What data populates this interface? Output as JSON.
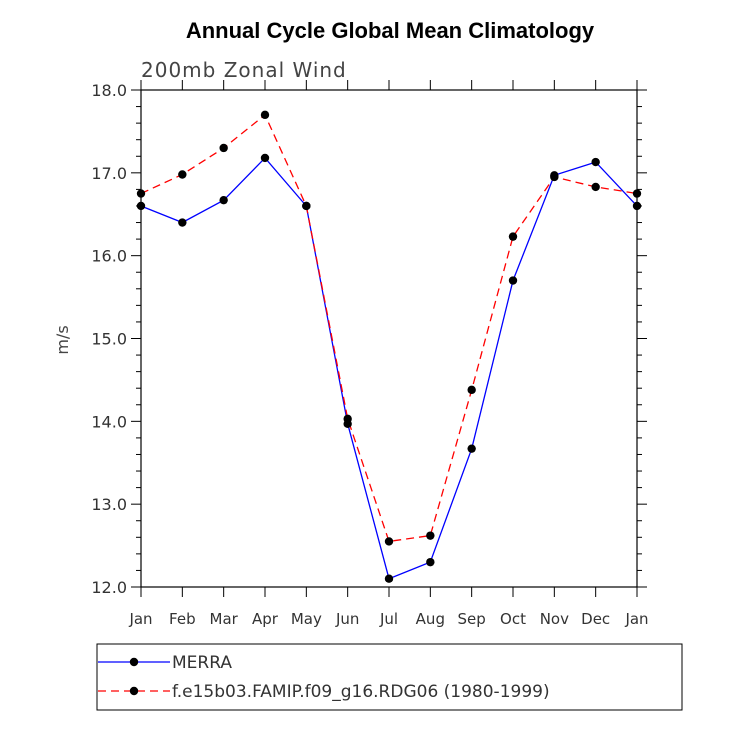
{
  "chart_data": {
    "type": "line",
    "title": "Annual Cycle Global Mean Climatology",
    "subtitle": "200mb Zonal Wind",
    "xlabel": "",
    "ylabel": "m/s",
    "categories": [
      "Jan",
      "Feb",
      "Mar",
      "Apr",
      "May",
      "Jun",
      "Jul",
      "Aug",
      "Sep",
      "Oct",
      "Nov",
      "Dec",
      "Jan"
    ],
    "ylim": [
      12.0,
      18.0
    ],
    "yticks": [
      12.0,
      13.0,
      14.0,
      15.0,
      16.0,
      17.0,
      18.0
    ],
    "ytick_labels": [
      "12.0",
      "13.0",
      "14.0",
      "15.0",
      "16.0",
      "17.0",
      "18.0"
    ],
    "series": [
      {
        "name": "MERRA",
        "color": "#0000ff",
        "dash": "solid",
        "values": [
          16.6,
          16.4,
          16.67,
          17.18,
          16.6,
          13.97,
          12.1,
          12.3,
          13.67,
          15.7,
          16.97,
          17.13,
          16.6
        ]
      },
      {
        "name": "f.e15b03.FAMIP.f09_g16.RDG06 (1980-1999)",
        "color": "#ff0000",
        "dash": "dashed",
        "values": [
          16.75,
          16.98,
          17.3,
          17.7,
          16.6,
          14.03,
          12.55,
          12.62,
          14.38,
          16.23,
          16.95,
          16.83,
          16.75
        ]
      }
    ],
    "legend": "bottom"
  }
}
